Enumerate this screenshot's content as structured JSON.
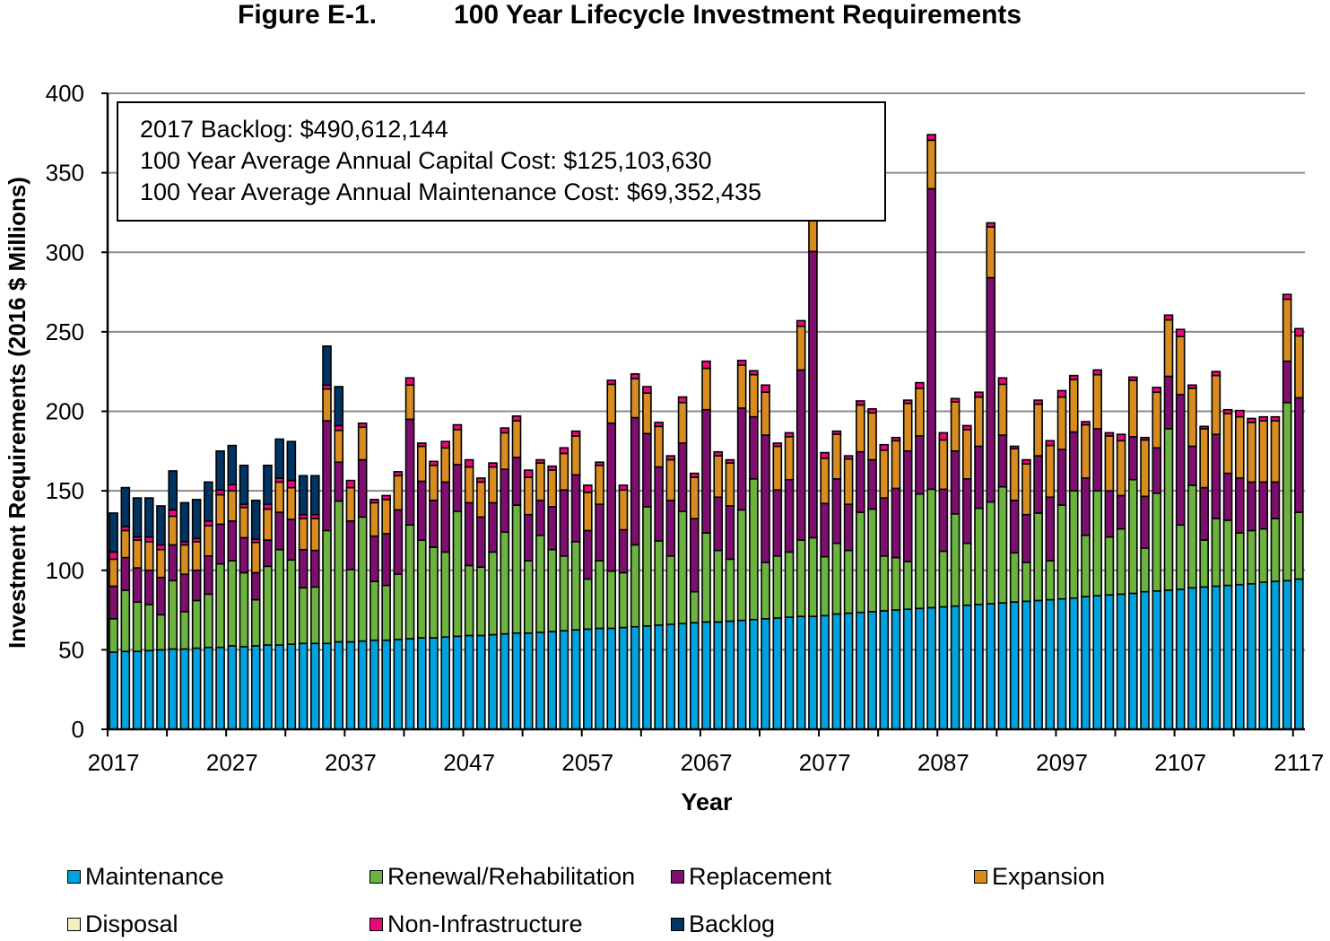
{
  "chart_data": {
    "type": "bar",
    "stacked": true,
    "title_label": "Figure E-1.",
    "title": "100 Year Lifecycle Investment Requirements",
    "xlabel": "Year",
    "ylabel": "Investment Requirements (2016 $ Millions)",
    "ylim": [
      0,
      400
    ],
    "yticks": [
      0,
      50,
      100,
      150,
      200,
      250,
      300,
      350,
      400
    ],
    "xtick_labels": [
      "2017",
      "2027",
      "2037",
      "2047",
      "2057",
      "2067",
      "2077",
      "2087",
      "2097",
      "2107",
      "2117"
    ],
    "grid": true,
    "legend_position": "bottom",
    "annotation": [
      "2017 Backlog: $490,612,144",
      "100 Year Average Annual Capital Cost: $125,103,630",
      "100 Year Average Annual Maintenance Cost: $69,352,435"
    ],
    "categories": [
      2017,
      2018,
      2019,
      2020,
      2021,
      2022,
      2023,
      2024,
      2025,
      2026,
      2027,
      2028,
      2029,
      2030,
      2031,
      2032,
      2033,
      2034,
      2035,
      2036,
      2037,
      2038,
      2039,
      2040,
      2041,
      2042,
      2043,
      2044,
      2045,
      2046,
      2047,
      2048,
      2049,
      2050,
      2051,
      2052,
      2053,
      2054,
      2055,
      2056,
      2057,
      2058,
      2059,
      2060,
      2061,
      2062,
      2063,
      2064,
      2065,
      2066,
      2067,
      2068,
      2069,
      2070,
      2071,
      2072,
      2073,
      2074,
      2075,
      2076,
      2077,
      2078,
      2079,
      2080,
      2081,
      2082,
      2083,
      2084,
      2085,
      2086,
      2087,
      2088,
      2089,
      2090,
      2091,
      2092,
      2093,
      2094,
      2095,
      2096,
      2097,
      2098,
      2099,
      2100,
      2101,
      2102,
      2103,
      2104,
      2105,
      2106,
      2107,
      2108,
      2109,
      2110,
      2111,
      2112,
      2113,
      2114,
      2115,
      2116,
      2117
    ],
    "series": [
      {
        "name": "Maintenance",
        "color": "#00A3DE",
        "values": [
          48.5,
          49,
          49,
          49.5,
          50,
          50.5,
          50.5,
          51,
          51.5,
          51.5,
          52.5,
          52,
          52.5,
          53,
          53,
          53.5,
          54,
          54,
          54,
          55,
          55,
          55.5,
          56,
          56,
          56.5,
          57,
          57.5,
          57.5,
          58,
          58.5,
          59,
          59,
          59.5,
          60,
          60.5,
          60.5,
          61,
          61.5,
          62,
          62.5,
          63,
          63.5,
          63.5,
          64,
          64.5,
          65,
          65.5,
          66,
          66.5,
          67,
          67.5,
          67.5,
          68,
          68.5,
          69,
          69.5,
          70,
          70.5,
          71,
          71,
          71.5,
          72.5,
          73,
          73.5,
          74,
          74.5,
          75,
          75.5,
          76,
          76.5,
          77,
          77.5,
          78,
          78.5,
          79,
          79.5,
          80,
          80.5,
          81,
          81.5,
          82,
          82.5,
          83.5,
          84,
          84.5,
          85,
          85.5,
          86.5,
          87,
          87.5,
          88,
          89,
          89.5,
          90,
          90.5,
          91,
          91.5,
          92.5,
          93,
          93.5,
          94.5
        ]
      },
      {
        "name": "Renewal/Rehabilitation",
        "color": "#6BB23F",
        "values": [
          21,
          38.5,
          31,
          29,
          22,
          43,
          23.5,
          30,
          33.5,
          52.5,
          53.5,
          46.5,
          29,
          49.5,
          60,
          53,
          35,
          35.5,
          71,
          88.5,
          45.5,
          78,
          37,
          34.5,
          41,
          71.5,
          61.5,
          57,
          53.5,
          78.5,
          44,
          43,
          52,
          64,
          80.5,
          45.5,
          61,
          51.5,
          47,
          55.5,
          31.5,
          42.5,
          36,
          34.5,
          51.5,
          75,
          53,
          43,
          70.5,
          19.5,
          56,
          45,
          39,
          69.5,
          88.5,
          35.5,
          39,
          41,
          48,
          49.5,
          37,
          44.5,
          39.5,
          63,
          64.5,
          34.5,
          33,
          30,
          72,
          74.5,
          35,
          58,
          39,
          60.5,
          64,
          73,
          31,
          24.5,
          55,
          24.5,
          59,
          67.5,
          38.5,
          66,
          36.5,
          41,
          71.5,
          27.5,
          61.5,
          101.5,
          40.5,
          64.5,
          29.5,
          42.5,
          41,
          32.5,
          33.5,
          33.5,
          39.5,
          112,
          42
        ]
      },
      {
        "name": "Replacement",
        "color": "#7E0F6F",
        "values": [
          20.5,
          20.5,
          21.5,
          21.5,
          23.5,
          22.5,
          23.5,
          19,
          24,
          25,
          25,
          22,
          17,
          16.5,
          23.5,
          25.5,
          24,
          23,
          69,
          24.5,
          30.5,
          36,
          28.5,
          32.5,
          40.5,
          66.5,
          37,
          29.5,
          44,
          29.5,
          39.5,
          31.5,
          31,
          39.5,
          30,
          29,
          22,
          27,
          41.5,
          42,
          30.5,
          35.5,
          93,
          27,
          80,
          46,
          46.5,
          35,
          43,
          46,
          77.5,
          33.5,
          33.5,
          64,
          39,
          80,
          41.5,
          45.5,
          107,
          180,
          33.5,
          40.5,
          29,
          38,
          31,
          36.5,
          43.5,
          69.5,
          36.5,
          189,
          39,
          39.5,
          40.5,
          39,
          141,
          32.5,
          33,
          30,
          36,
          40,
          35,
          37,
          36,
          39,
          29,
          21,
          27,
          32.5,
          28.5,
          33,
          82,
          24.5,
          33,
          53,
          29.5,
          34.5,
          30.5,
          29.5,
          23,
          26,
          72
        ]
      },
      {
        "name": "Expansion",
        "color": "#D88B1E",
        "values": [
          17,
          17,
          17.5,
          18,
          17.5,
          18,
          18.5,
          18,
          19,
          18.5,
          19,
          19,
          19,
          19.5,
          19,
          20,
          19.5,
          20,
          20,
          20,
          21,
          20.5,
          21,
          21.5,
          21.5,
          21.5,
          22,
          22,
          21.5,
          22,
          22.5,
          22,
          22.5,
          23,
          23,
          23.5,
          23.5,
          23,
          23,
          24.5,
          24,
          24.5,
          24.5,
          25,
          24.5,
          25.5,
          25.5,
          25.5,
          25.5,
          26,
          26,
          26,
          27,
          27,
          26.5,
          27,
          27.5,
          27,
          27.5,
          28,
          28.5,
          28,
          28.5,
          29.5,
          29.5,
          30,
          30,
          30,
          30,
          30.5,
          31,
          31,
          31,
          31,
          32,
          32,
          32.5,
          32,
          32.5,
          32.5,
          33,
          33,
          33.5,
          34,
          34.5,
          34.5,
          35.5,
          35.5,
          35,
          35.5,
          36.5,
          36.5,
          37,
          37,
          37.5,
          38.5,
          37.5,
          38.5,
          38.5,
          39,
          39
        ]
      },
      {
        "name": "Disposal",
        "color": "#F3EFC2",
        "values": [
          0,
          0,
          0,
          0,
          0,
          0,
          0,
          0,
          0,
          0,
          0,
          0,
          0,
          0,
          0,
          0,
          0,
          0,
          0,
          0,
          0,
          0,
          0,
          0,
          0,
          0,
          0,
          0,
          0,
          0,
          0,
          0,
          0,
          0,
          0,
          0,
          0,
          0,
          0,
          0,
          0,
          0,
          0,
          0,
          0,
          0,
          0,
          0,
          0,
          0,
          0,
          0,
          0,
          0,
          0,
          0,
          0,
          0,
          0,
          0,
          0,
          0,
          0,
          0,
          0,
          0,
          0,
          0,
          0,
          0,
          0,
          0,
          0,
          0,
          0,
          0,
          0,
          0,
          0,
          0,
          0,
          0,
          0,
          0,
          0,
          0,
          0,
          0,
          0,
          0,
          0,
          0,
          0,
          0,
          0,
          0,
          0,
          0,
          0,
          0,
          0
        ]
      },
      {
        "name": "Non-Infrastructure",
        "color": "#E8087B",
        "values": [
          4.5,
          2.5,
          2,
          3,
          3,
          4,
          2,
          2,
          3,
          3,
          4,
          2,
          2,
          3,
          2.5,
          4.5,
          2.5,
          2.5,
          2.5,
          3,
          4.5,
          2.5,
          2,
          2.5,
          2.5,
          4.5,
          2,
          2.5,
          4,
          3,
          4.5,
          2.5,
          2.5,
          3,
          3,
          4.5,
          2,
          2.5,
          3.5,
          3,
          4.5,
          2,
          2.5,
          3,
          3,
          4,
          2.5,
          2.5,
          3.5,
          2.5,
          4.5,
          2.5,
          2,
          3,
          2.5,
          4.5,
          2,
          2.5,
          3.5,
          2.5,
          3.5,
          2,
          2,
          2.5,
          2.5,
          3.5,
          2,
          2,
          3.5,
          3.5,
          4.5,
          2,
          2.5,
          3,
          2.5,
          4,
          1.5,
          2.5,
          2.5,
          3,
          4,
          2.5,
          2,
          3,
          2,
          4,
          2,
          1.5,
          3,
          3,
          4.5,
          2,
          1.5,
          2.5,
          2.5,
          4,
          2.5,
          2.5,
          2.5,
          3,
          4.5
        ]
      },
      {
        "name": "Backlog",
        "color": "#003462",
        "values": [
          24.5,
          24.5,
          24.5,
          24.5,
          24.5,
          24.5,
          24.5,
          24.5,
          24.5,
          24.5,
          24.5,
          24.5,
          24.5,
          24.5,
          24.5,
          24.5,
          24.5,
          24.5,
          24.5,
          24.5,
          0,
          0,
          0,
          0,
          0,
          0,
          0,
          0,
          0,
          0,
          0,
          0,
          0,
          0,
          0,
          0,
          0,
          0,
          0,
          0,
          0,
          0,
          0,
          0,
          0,
          0,
          0,
          0,
          0,
          0,
          0,
          0,
          0,
          0,
          0,
          0,
          0,
          0,
          0,
          0,
          0,
          0,
          0,
          0,
          0,
          0,
          0,
          0,
          0,
          0,
          0,
          0,
          0,
          0,
          0,
          0,
          0,
          0,
          0,
          0,
          0,
          0,
          0,
          0,
          0,
          0,
          0,
          0,
          0,
          0,
          0,
          0,
          0,
          0,
          0,
          0,
          0,
          0,
          0,
          0,
          0
        ]
      }
    ]
  }
}
